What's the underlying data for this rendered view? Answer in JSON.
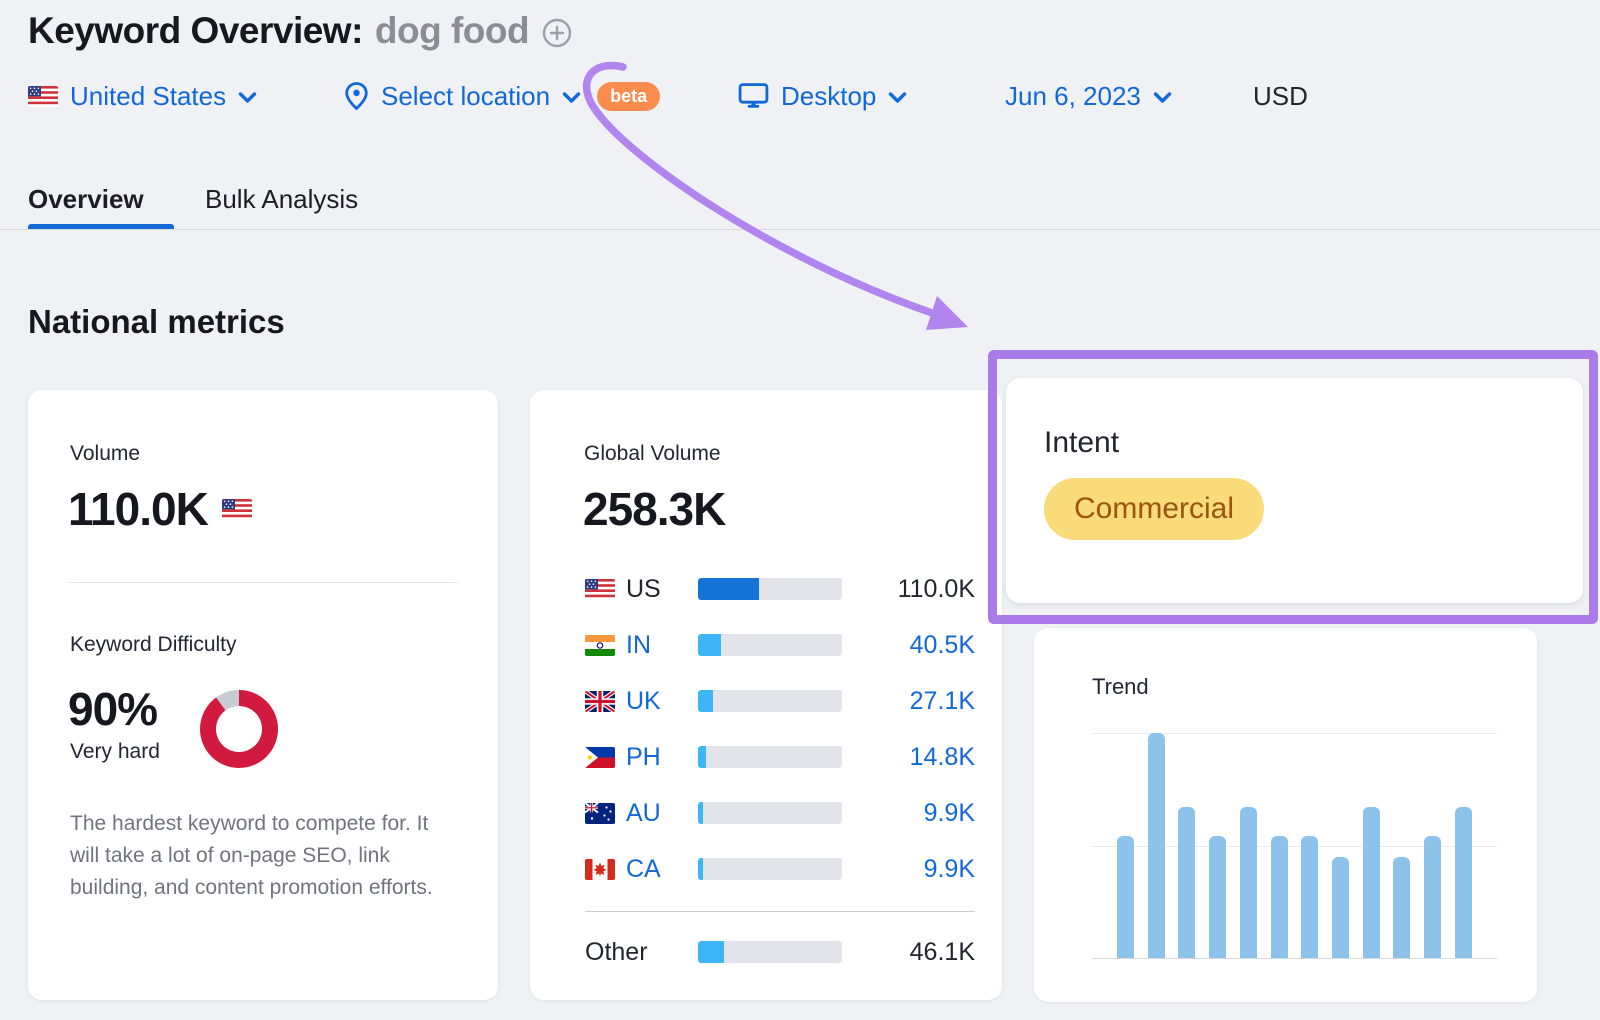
{
  "header": {
    "title": "Keyword Overview:",
    "keyword": "dog food",
    "filters": {
      "country": "United States",
      "location": "Select location",
      "location_beta": "beta",
      "device": "Desktop",
      "date": "Jun 6, 2023",
      "currency": "USD"
    }
  },
  "tabs": [
    {
      "label": "Overview",
      "active": true
    },
    {
      "label": "Bulk Analysis",
      "active": false
    }
  ],
  "section_title": "National metrics",
  "volume_card": {
    "title": "Volume",
    "value": "110.0K",
    "kd_title": "Keyword Difficulty",
    "kd_value": "90%",
    "kd_percent": 90,
    "kd_label": "Very hard",
    "kd_description": "The hardest keyword to compete for. It will take a lot of on-page SEO, link building, and content promotion efforts."
  },
  "global_card": {
    "title": "Global Volume",
    "value": "258.3K",
    "rows": [
      {
        "code": "US",
        "flag": "us",
        "value": "110.0K",
        "bar_pct": 42.6,
        "is_link": false,
        "divider_above": false
      },
      {
        "code": "IN",
        "flag": "in",
        "value": "40.5K",
        "bar_pct": 15.7,
        "is_link": true,
        "divider_above": false
      },
      {
        "code": "UK",
        "flag": "uk",
        "value": "27.1K",
        "bar_pct": 10.5,
        "is_link": true,
        "divider_above": false
      },
      {
        "code": "PH",
        "flag": "ph",
        "value": "14.8K",
        "bar_pct": 5.7,
        "is_link": true,
        "divider_above": false
      },
      {
        "code": "AU",
        "flag": "au",
        "value": "9.9K",
        "bar_pct": 3.8,
        "is_link": true,
        "divider_above": false
      },
      {
        "code": "CA",
        "flag": "ca",
        "value": "9.9K",
        "bar_pct": 3.8,
        "is_link": true,
        "divider_above": false
      },
      {
        "code": "Other",
        "flag": null,
        "value": "46.1K",
        "bar_pct": 17.8,
        "is_link": false,
        "divider_above": true
      }
    ]
  },
  "intent_card": {
    "title": "Intent",
    "badge": "Commercial"
  },
  "trend_card": {
    "title": "Trend"
  },
  "chart_data": [
    {
      "id": "global_volume",
      "type": "bar",
      "title": "Global Volume",
      "total": 258300,
      "total_label": "258.3K",
      "categories": [
        "US",
        "IN",
        "UK",
        "PH",
        "AU",
        "CA",
        "Other"
      ],
      "values": [
        110000,
        40500,
        27100,
        14800,
        9900,
        9900,
        46100
      ],
      "value_labels": [
        "110.0K",
        "40.5K",
        "27.1K",
        "14.8K",
        "9.9K",
        "9.9K",
        "46.1K"
      ],
      "orientation": "horizontal",
      "grid": false
    },
    {
      "id": "trend",
      "type": "bar",
      "title": "Trend",
      "categories": [
        "",
        "",
        "",
        "",
        "",
        "",
        "",
        "",
        "",
        "",
        "",
        ""
      ],
      "values": [
        0.54,
        1.0,
        0.67,
        0.54,
        0.67,
        0.54,
        0.54,
        0.45,
        0.67,
        0.45,
        0.54,
        0.67
      ],
      "ylim": [
        0,
        1
      ],
      "grid": true,
      "legend": false
    },
    {
      "id": "keyword_difficulty",
      "type": "donut",
      "value_percent": 90,
      "label": "Very hard"
    }
  ],
  "icons": {
    "add_keyword": "plus-circle",
    "location_pin": "map-pin",
    "device": "desktop-monitor",
    "dropdown": "chevron-down"
  },
  "colors": {
    "accent_blue": "#1068d9",
    "us_bar_blue": "#1373d6",
    "light_bar_blue": "#3db5f7",
    "trend_bar_blue": "#8dc3eb",
    "kd_red": "#d11a3e",
    "kd_gap_gray": "#c7cbd2",
    "beta_orange": "#fb8c4e",
    "intent_badge_bg": "#f9db79",
    "intent_badge_text": "#9c5410",
    "annotation_purple": "#aa7ae8"
  }
}
